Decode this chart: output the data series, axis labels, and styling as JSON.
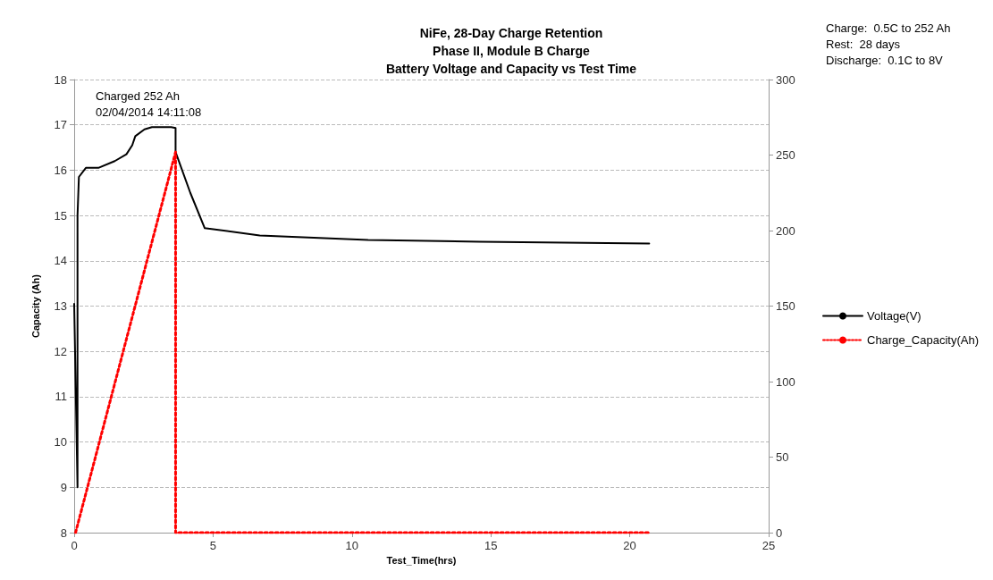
{
  "chart_data": {
    "type": "line",
    "title": "NiFe, 28-Day Charge Retention\nPhase II, Module B Charge\nBattery Voltage and Capacity vs Test Time",
    "xlabel": "Test_Time(hrs)",
    "ylabel": "Capacity (Ah)",
    "annotations": [
      "Charged 252 Ah\n02/04/2014 14:11:08",
      "Charge:  0.5C to 252 Ah\nRest:  28 days\nDischarge:  0.1C to 8V"
    ],
    "xlim": [
      0,
      25
    ],
    "xticks": [
      0,
      5,
      10,
      15,
      20,
      25
    ],
    "ylim": [
      8,
      18
    ],
    "yticks": [
      8,
      9,
      10,
      11,
      12,
      13,
      14,
      15,
      16,
      17,
      18
    ],
    "y2lim": [
      0,
      300
    ],
    "y2ticks": [
      0,
      50,
      100,
      150,
      200,
      250,
      300
    ],
    "grid": "y",
    "legend": "right",
    "marker": "none",
    "series": [
      {
        "name": "Voltage(V)",
        "color": "#000000",
        "line_style": "solid",
        "x": [
          0.0,
          0.12,
          0.12,
          0.17,
          0.42,
          0.87,
          1.46,
          1.88,
          2.09,
          2.2,
          2.53,
          2.8,
          3.49,
          3.65,
          3.65,
          4.18,
          4.7,
          6.68,
          10.58,
          14.6,
          20.7
        ],
        "values": [
          13.05,
          9,
          15,
          15.85,
          16.05,
          16.05,
          16.2,
          16.35,
          16.55,
          16.75,
          16.9,
          16.95,
          16.95,
          16.93,
          16.4,
          15.5,
          14.72,
          14.56,
          14.46,
          14.42,
          14.38
        ]
      },
      {
        "name": "Charge_Capacity(Ah)",
        "color": "#ff0000",
        "line_style": "dotted",
        "axis": "y2",
        "x": [
          0.05,
          3.65,
          3.65,
          20.7
        ],
        "values": [
          0,
          252,
          0,
          0
        ]
      }
    ]
  }
}
